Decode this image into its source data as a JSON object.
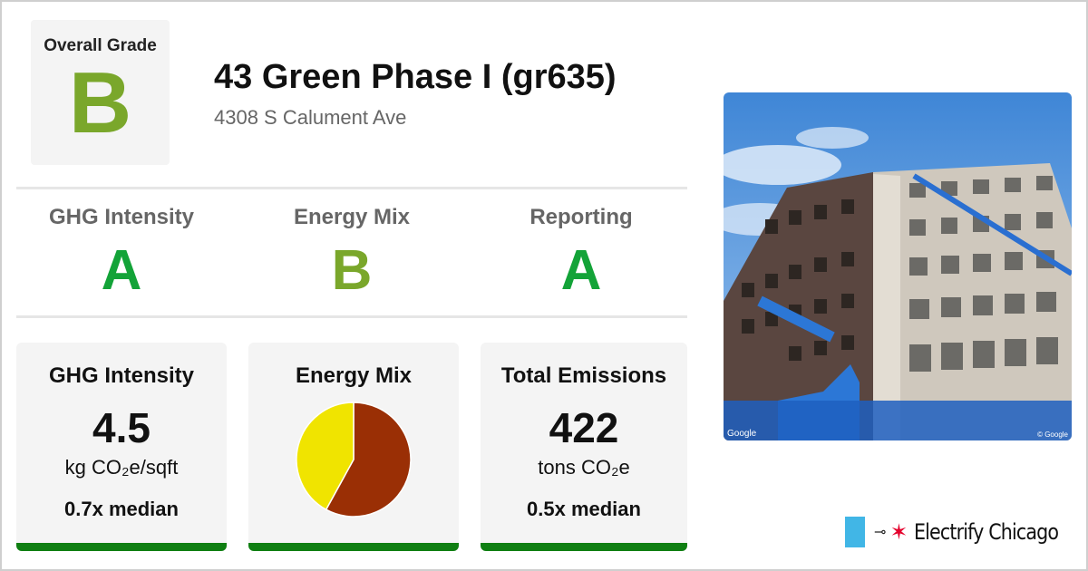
{
  "overall": {
    "label": "Overall Grade",
    "grade": "B"
  },
  "building": {
    "title": "43 Green Phase I (gr635)",
    "address": "4308 S Calument Ave"
  },
  "subgrades": [
    {
      "label": "GHG Intensity",
      "grade": "A"
    },
    {
      "label": "Energy Mix",
      "grade": "B"
    },
    {
      "label": "Reporting",
      "grade": "A"
    }
  ],
  "cards": {
    "ghg": {
      "title": "GHG Intensity",
      "value": "4.5",
      "unit": "kg CO₂e/sqft",
      "median": "0.7x median"
    },
    "mix": {
      "title": "Energy Mix"
    },
    "emissions": {
      "title": "Total Emissions",
      "value": "422",
      "unit": "tons CO₂e",
      "median": "0.5x median"
    }
  },
  "chart_data": {
    "type": "pie",
    "title": "Energy Mix",
    "categories": [
      "",
      ""
    ],
    "values": [
      58,
      42
    ],
    "colors": [
      "#9a2f05",
      "#f0e400"
    ]
  },
  "photo": {
    "credit_left": "Google",
    "credit_right": "© Google"
  },
  "brand": {
    "name": "Electrify Chicago"
  },
  "colors": {
    "grade_a": "#13a338",
    "grade_b": "#7aa72b",
    "bar": "#0f7f12",
    "flag": "#41b6e6",
    "star": "#e4002b"
  }
}
